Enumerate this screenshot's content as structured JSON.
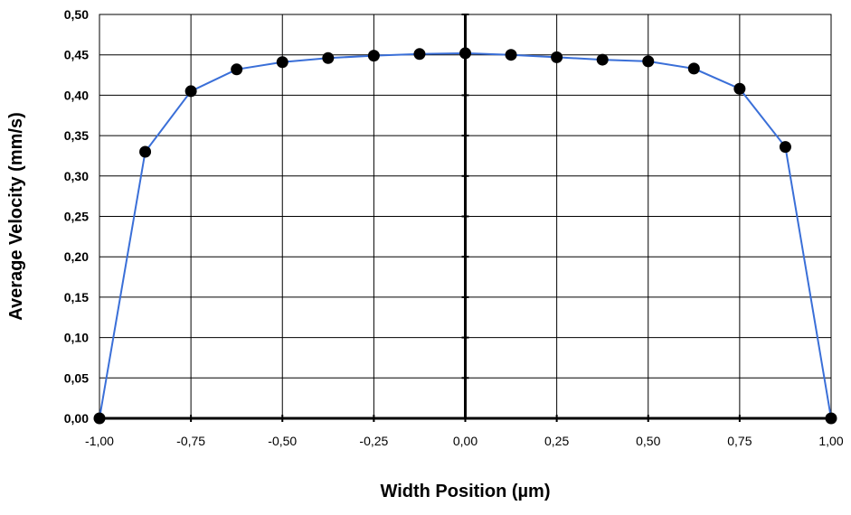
{
  "chart_data": {
    "type": "scatter",
    "title": "",
    "xlabel": "Width Position (µm)",
    "ylabel": "Average Velocity (mm/s)",
    "xlim": [
      -1.0,
      1.0
    ],
    "ylim": [
      0.0,
      0.5
    ],
    "x_ticks": [
      "-1,00",
      "-0,75",
      "-0,50",
      "-0,25",
      "0,00",
      "0,25",
      "0,50",
      "0,75",
      "1,00"
    ],
    "y_ticks": [
      "0,00",
      "0,05",
      "0,10",
      "0,15",
      "0,20",
      "0,25",
      "0,30",
      "0,35",
      "0,40",
      "0,45",
      "0,50"
    ],
    "grid": true,
    "legend": "none",
    "line_color": "#3a6fd8",
    "marker_color": "#000000",
    "series": [
      {
        "x": [
          -1.0,
          -0.875,
          -0.75,
          -0.625,
          -0.5,
          -0.375,
          -0.25,
          -0.125,
          0.0,
          0.125,
          0.25,
          0.375,
          0.5,
          0.625,
          0.75,
          0.875,
          1.0
        ],
        "y": [
          0.0,
          0.33,
          0.405,
          0.432,
          0.441,
          0.446,
          0.449,
          0.451,
          0.452,
          0.45,
          0.447,
          0.444,
          0.442,
          0.433,
          0.408,
          0.336,
          0.0
        ]
      }
    ]
  }
}
